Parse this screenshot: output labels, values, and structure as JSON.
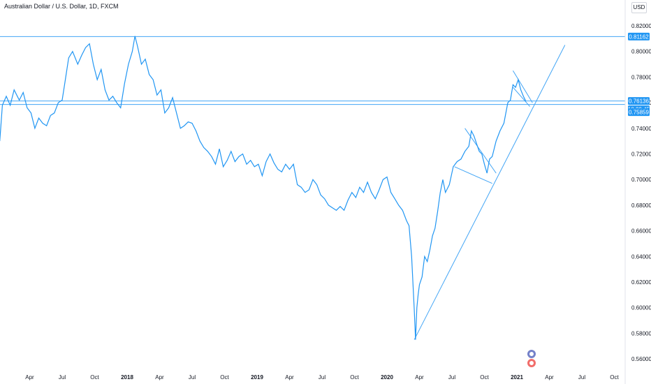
{
  "header": {
    "title": "Australian Dollar / U.S. Dollar, 1D, FXCM",
    "currency": "USD"
  },
  "chart_data": {
    "type": "line",
    "ylim": [
      0.555,
      0.83
    ],
    "yticks": [
      "0.82000",
      "0.80000",
      "0.78000",
      "0.76000",
      "0.74000",
      "0.72000",
      "0.70000",
      "0.68000",
      "0.66000",
      "0.64000",
      "0.62000",
      "0.60000",
      "0.58000",
      "0.56000"
    ],
    "xticks": [
      {
        "label": "Apr",
        "t": 0.25,
        "bold": false
      },
      {
        "label": "Jul",
        "t": 0.5,
        "bold": false
      },
      {
        "label": "Oct",
        "t": 0.75,
        "bold": false
      },
      {
        "label": "2018",
        "t": 1.0,
        "bold": true
      },
      {
        "label": "Apr",
        "t": 1.25,
        "bold": false
      },
      {
        "label": "Jul",
        "t": 1.5,
        "bold": false
      },
      {
        "label": "Oct",
        "t": 1.75,
        "bold": false
      },
      {
        "label": "2019",
        "t": 2.0,
        "bold": true
      },
      {
        "label": "Apr",
        "t": 2.25,
        "bold": false
      },
      {
        "label": "Jul",
        "t": 2.5,
        "bold": false
      },
      {
        "label": "Oct",
        "t": 2.75,
        "bold": false
      },
      {
        "label": "2020",
        "t": 3.0,
        "bold": true
      },
      {
        "label": "Apr",
        "t": 3.25,
        "bold": false
      },
      {
        "label": "Jul",
        "t": 3.5,
        "bold": false
      },
      {
        "label": "Oct",
        "t": 3.75,
        "bold": false
      },
      {
        "label": "2021",
        "t": 4.0,
        "bold": true
      },
      {
        "label": "Apr",
        "t": 4.25,
        "bold": false
      },
      {
        "label": "Jul",
        "t": 4.5,
        "bold": false
      },
      {
        "label": "Oct",
        "t": 4.75,
        "bold": false
      }
    ],
    "series": [
      {
        "points": [
          [
            0.02,
            0.73
          ],
          [
            0.04,
            0.758
          ],
          [
            0.07,
            0.765
          ],
          [
            0.1,
            0.758
          ],
          [
            0.13,
            0.77
          ],
          [
            0.17,
            0.762
          ],
          [
            0.2,
            0.768
          ],
          [
            0.23,
            0.756
          ],
          [
            0.26,
            0.752
          ],
          [
            0.29,
            0.74
          ],
          [
            0.32,
            0.748
          ],
          [
            0.35,
            0.744
          ],
          [
            0.38,
            0.742
          ],
          [
            0.41,
            0.75
          ],
          [
            0.44,
            0.752
          ],
          [
            0.47,
            0.76
          ],
          [
            0.5,
            0.762
          ],
          [
            0.52,
            0.775
          ],
          [
            0.55,
            0.795
          ],
          [
            0.58,
            0.8
          ],
          [
            0.62,
            0.79
          ],
          [
            0.65,
            0.797
          ],
          [
            0.68,
            0.803
          ],
          [
            0.71,
            0.806
          ],
          [
            0.74,
            0.79
          ],
          [
            0.77,
            0.778
          ],
          [
            0.8,
            0.786
          ],
          [
            0.83,
            0.77
          ],
          [
            0.86,
            0.762
          ],
          [
            0.89,
            0.765
          ],
          [
            0.92,
            0.76
          ],
          [
            0.95,
            0.756
          ],
          [
            0.98,
            0.775
          ],
          [
            1.01,
            0.79
          ],
          [
            1.04,
            0.8
          ],
          [
            1.06,
            0.812
          ],
          [
            1.08,
            0.804
          ],
          [
            1.11,
            0.79
          ],
          [
            1.14,
            0.794
          ],
          [
            1.17,
            0.782
          ],
          [
            1.2,
            0.778
          ],
          [
            1.23,
            0.766
          ],
          [
            1.26,
            0.77
          ],
          [
            1.29,
            0.752
          ],
          [
            1.32,
            0.756
          ],
          [
            1.35,
            0.764
          ],
          [
            1.38,
            0.752
          ],
          [
            1.41,
            0.74
          ],
          [
            1.44,
            0.742
          ],
          [
            1.47,
            0.745
          ],
          [
            1.5,
            0.744
          ],
          [
            1.53,
            0.738
          ],
          [
            1.56,
            0.73
          ],
          [
            1.59,
            0.725
          ],
          [
            1.62,
            0.722
          ],
          [
            1.65,
            0.718
          ],
          [
            1.68,
            0.712
          ],
          [
            1.71,
            0.724
          ],
          [
            1.74,
            0.71
          ],
          [
            1.77,
            0.715
          ],
          [
            1.8,
            0.722
          ],
          [
            1.83,
            0.714
          ],
          [
            1.86,
            0.718
          ],
          [
            1.89,
            0.72
          ],
          [
            1.92,
            0.712
          ],
          [
            1.95,
            0.715
          ],
          [
            1.98,
            0.71
          ],
          [
            2.01,
            0.712
          ],
          [
            2.04,
            0.703
          ],
          [
            2.07,
            0.714
          ],
          [
            2.1,
            0.72
          ],
          [
            2.13,
            0.713
          ],
          [
            2.16,
            0.708
          ],
          [
            2.19,
            0.706
          ],
          [
            2.22,
            0.712
          ],
          [
            2.25,
            0.708
          ],
          [
            2.28,
            0.712
          ],
          [
            2.31,
            0.696
          ],
          [
            2.34,
            0.694
          ],
          [
            2.37,
            0.69
          ],
          [
            2.4,
            0.692
          ],
          [
            2.43,
            0.7
          ],
          [
            2.46,
            0.696
          ],
          [
            2.49,
            0.688
          ],
          [
            2.52,
            0.685
          ],
          [
            2.55,
            0.68
          ],
          [
            2.58,
            0.678
          ],
          [
            2.61,
            0.676
          ],
          [
            2.64,
            0.679
          ],
          [
            2.67,
            0.676
          ],
          [
            2.7,
            0.684
          ],
          [
            2.73,
            0.69
          ],
          [
            2.76,
            0.686
          ],
          [
            2.79,
            0.694
          ],
          [
            2.82,
            0.69
          ],
          [
            2.85,
            0.698
          ],
          [
            2.88,
            0.69
          ],
          [
            2.91,
            0.685
          ],
          [
            2.94,
            0.692
          ],
          [
            2.97,
            0.7
          ],
          [
            3.0,
            0.702
          ],
          [
            3.03,
            0.69
          ],
          [
            3.06,
            0.685
          ],
          [
            3.09,
            0.68
          ],
          [
            3.12,
            0.676
          ],
          [
            3.15,
            0.668
          ],
          [
            3.17,
            0.664
          ],
          [
            3.19,
            0.64
          ],
          [
            3.21,
            0.598
          ],
          [
            3.22,
            0.575
          ],
          [
            3.23,
            0.6
          ],
          [
            3.24,
            0.61
          ],
          [
            3.25,
            0.618
          ],
          [
            3.27,
            0.624
          ],
          [
            3.29,
            0.64
          ],
          [
            3.31,
            0.636
          ],
          [
            3.33,
            0.645
          ],
          [
            3.35,
            0.656
          ],
          [
            3.37,
            0.662
          ],
          [
            3.39,
            0.675
          ],
          [
            3.41,
            0.69
          ],
          [
            3.43,
            0.7
          ],
          [
            3.45,
            0.69
          ],
          [
            3.48,
            0.696
          ],
          [
            3.51,
            0.71
          ],
          [
            3.54,
            0.714
          ],
          [
            3.57,
            0.716
          ],
          [
            3.6,
            0.722
          ],
          [
            3.63,
            0.726
          ],
          [
            3.65,
            0.738
          ],
          [
            3.67,
            0.734
          ],
          [
            3.69,
            0.728
          ],
          [
            3.71,
            0.722
          ],
          [
            3.73,
            0.72
          ],
          [
            3.75,
            0.712
          ],
          [
            3.77,
            0.705
          ],
          [
            3.79,
            0.716
          ],
          [
            3.81,
            0.718
          ],
          [
            3.84,
            0.73
          ],
          [
            3.87,
            0.738
          ],
          [
            3.9,
            0.744
          ],
          [
            3.93,
            0.76
          ],
          [
            3.95,
            0.762
          ],
          [
            3.97,
            0.774
          ],
          [
            3.99,
            0.772
          ],
          [
            4.01,
            0.778
          ],
          [
            4.03,
            0.77
          ],
          [
            4.05,
            0.765
          ],
          [
            4.07,
            0.761
          ]
        ]
      }
    ],
    "horizontal_levels": [
      0.81162,
      0.76136,
      0.75859
    ],
    "trendlines": [
      {
        "from": [
          3.21,
          0.575
        ],
        "to": [
          4.37,
          0.805
        ]
      },
      {
        "from": [
          3.52,
          0.71
        ],
        "to": [
          3.81,
          0.697
        ]
      },
      {
        "from": [
          3.6,
          0.74
        ],
        "to": [
          3.84,
          0.705
        ]
      },
      {
        "from": [
          3.97,
          0.785
        ],
        "to": [
          4.12,
          0.76
        ]
      },
      {
        "from": [
          3.97,
          0.772
        ],
        "to": [
          4.1,
          0.757
        ]
      }
    ],
    "tags": [
      {
        "label": "0.81162",
        "value": 0.81162
      },
      {
        "label": "0.76136",
        "value": 0.76136
      },
      {
        "label": "18:29:45",
        "value": 0.76136,
        "offset": 12
      },
      {
        "label": "0.75859",
        "value": 0.75859,
        "offset": 11
      }
    ],
    "colors": {
      "line": "#2196f3",
      "level": "#42a5f5",
      "tag": "#2196f3",
      "text": "#131722"
    }
  }
}
